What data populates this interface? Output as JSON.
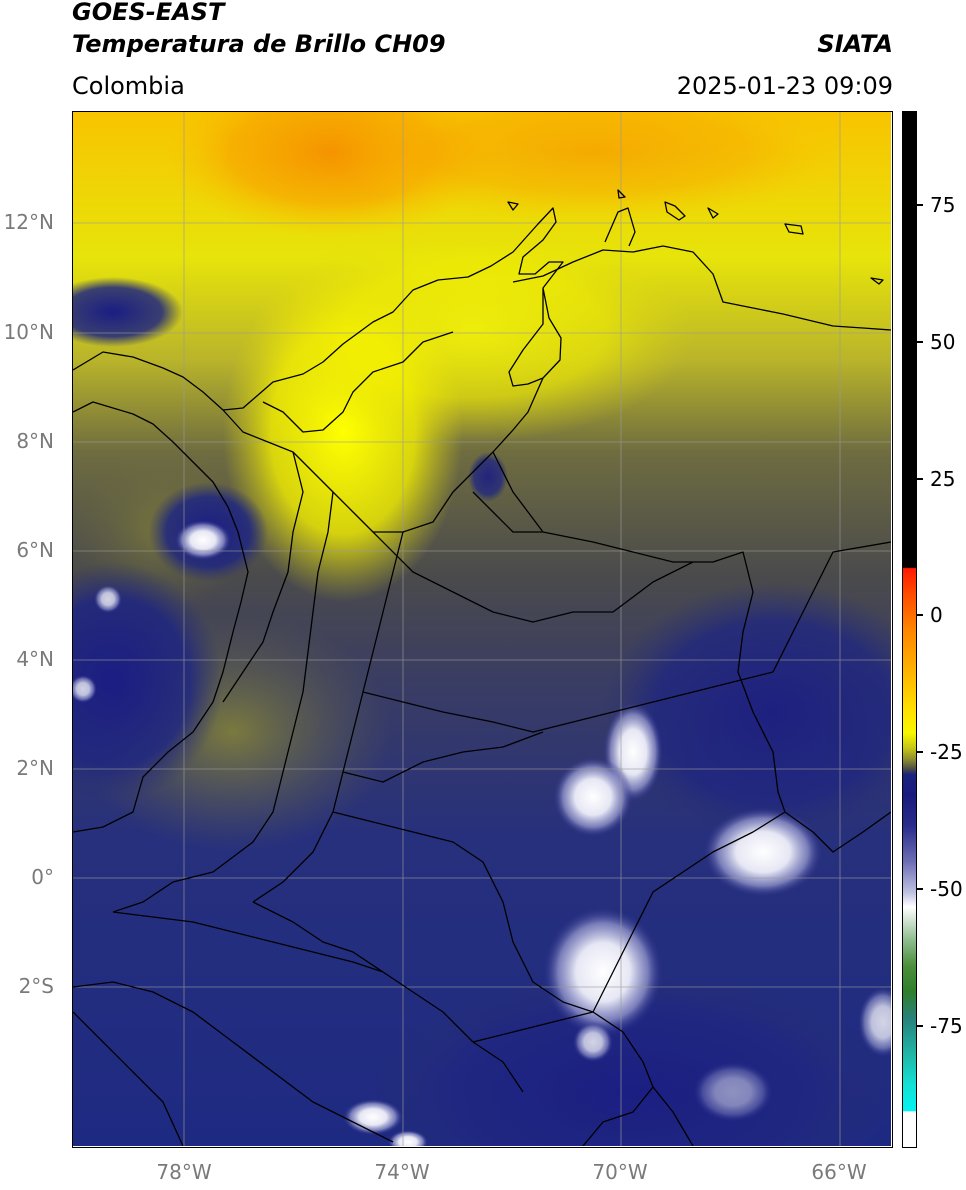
{
  "header": {
    "satellite": "GOES-EAST",
    "product": "Temperatura de Brillo CH09",
    "brand": "SIATA",
    "region": "Colombia",
    "datetime": "2025-01-23 09:09"
  },
  "map": {
    "projection": "lat-lon",
    "lat_labels": [
      "12°N",
      "10°N",
      "8°N",
      "6°N",
      "4°N",
      "2°N",
      "0°",
      "2°S"
    ],
    "lon_labels": [
      "78°W",
      "74°W",
      "70°W",
      "66°W"
    ],
    "gridlines": true
  },
  "colorbar": {
    "ticks": [
      "75",
      "50",
      "25",
      "0",
      "-25",
      "-50",
      "-75"
    ],
    "colors": {
      "warm": "#000000",
      "red": "#ff1a00",
      "orange": "#ff8500",
      "yellow": "#f7f700",
      "olive": "#8a8a30",
      "gray": "#4a4a48",
      "navy": "#1a1a7e",
      "white": "#ffffff",
      "green": "#2f7f2a",
      "cyan": "#14e0d4"
    }
  }
}
